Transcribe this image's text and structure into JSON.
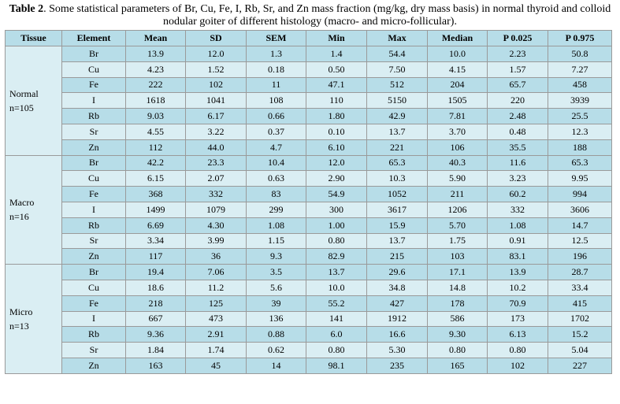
{
  "caption": {
    "label": "Table 2",
    "text": ". Some statistical parameters of Br, Cu, Fe, I, Rb, Sr, and Zn mass fraction (mg/kg, dry mass basis) in normal thyroid and colloid nodular goiter of different histology (macro- and micro-follicular)."
  },
  "headers": [
    "Tissue",
    "Element",
    "Mean",
    "SD",
    "SEM",
    "Min",
    "Max",
    "Median",
    "P 0.025",
    "P 0.975"
  ],
  "groups": [
    {
      "tissue": "Normal",
      "n": "n=105",
      "rows": [
        [
          "Br",
          "13.9",
          "12.0",
          "1.3",
          "1.4",
          "54.4",
          "10.0",
          "2.23",
          "50.8"
        ],
        [
          "Cu",
          "4.23",
          "1.52",
          "0.18",
          "0.50",
          "7.50",
          "4.15",
          "1.57",
          "7.27"
        ],
        [
          "Fe",
          "222",
          "102",
          "11",
          "47.1",
          "512",
          "204",
          "65.7",
          "458"
        ],
        [
          "I",
          "1618",
          "1041",
          "108",
          "110",
          "5150",
          "1505",
          "220",
          "3939"
        ],
        [
          "Rb",
          "9.03",
          "6.17",
          "0.66",
          "1.80",
          "42.9",
          "7.81",
          "2.48",
          "25.5"
        ],
        [
          "Sr",
          "4.55",
          "3.22",
          "0.37",
          "0.10",
          "13.7",
          "3.70",
          "0.48",
          "12.3"
        ],
        [
          "Zn",
          "112",
          "44.0",
          "4.7",
          "6.10",
          "221",
          "106",
          "35.5",
          "188"
        ]
      ]
    },
    {
      "tissue": "Macro",
      "n": "n=16",
      "rows": [
        [
          "Br",
          "42.2",
          "23.3",
          "10.4",
          "12.0",
          "65.3",
          "40.3",
          "11.6",
          "65.3"
        ],
        [
          "Cu",
          "6.15",
          "2.07",
          "0.63",
          "2.90",
          "10.3",
          "5.90",
          "3.23",
          "9.95"
        ],
        [
          "Fe",
          "368",
          "332",
          "83",
          "54.9",
          "1052",
          "211",
          "60.2",
          "994"
        ],
        [
          "I",
          "1499",
          "1079",
          "299",
          "300",
          "3617",
          "1206",
          "332",
          "3606"
        ],
        [
          "Rb",
          "6.69",
          "4.30",
          "1.08",
          "1.00",
          "15.9",
          "5.70",
          "1.08",
          "14.7"
        ],
        [
          "Sr",
          "3.34",
          "3.99",
          "1.15",
          "0.80",
          "13.7",
          "1.75",
          "0.91",
          "12.5"
        ],
        [
          "Zn",
          "117",
          "36",
          "9.3",
          "82.9",
          "215",
          "103",
          "83.1",
          "196"
        ]
      ]
    },
    {
      "tissue": "Micro",
      "n": "n=13",
      "rows": [
        [
          "Br",
          "19.4",
          "7.06",
          "3.5",
          "13.7",
          "29.6",
          "17.1",
          "13.9",
          "28.7"
        ],
        [
          "Cu",
          "18.6",
          "11.2",
          "5.6",
          "10.0",
          "34.8",
          "14.8",
          "10.2",
          "33.4"
        ],
        [
          "Fe",
          "218",
          "125",
          "39",
          "55.2",
          "427",
          "178",
          "70.9",
          "415"
        ],
        [
          "I",
          "667",
          "473",
          "136",
          "141",
          "1912",
          "586",
          "173",
          "1702"
        ],
        [
          "Rb",
          "9.36",
          "2.91",
          "0.88",
          "6.0",
          "16.6",
          "9.30",
          "6.13",
          "15.2"
        ],
        [
          "Sr",
          "1.84",
          "1.74",
          "0.62",
          "0.80",
          "5.30",
          "0.80",
          "0.80",
          "5.04"
        ],
        [
          "Zn",
          "163",
          "45",
          "14",
          "98.1",
          "235",
          "165",
          "102",
          "227"
        ]
      ]
    }
  ]
}
